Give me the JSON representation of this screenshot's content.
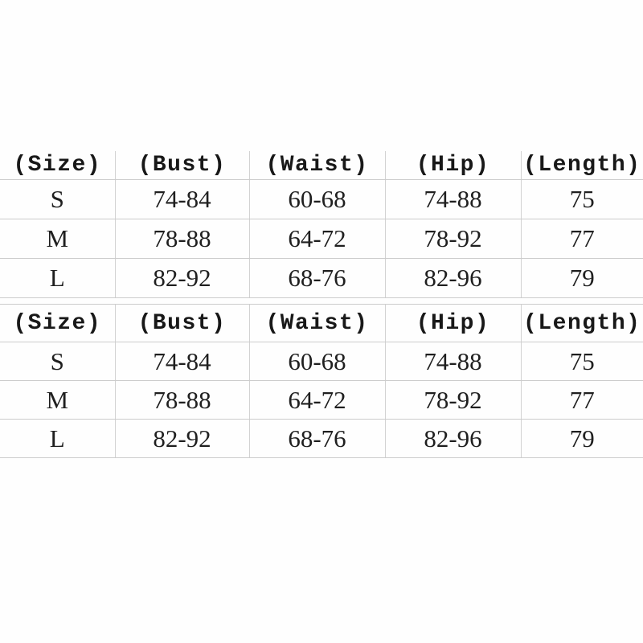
{
  "page": {
    "background_color": "#fefefe",
    "text_color": "#1f1f1f",
    "grid_line_color": "#cccccc"
  },
  "chart_data": [
    {
      "type": "table",
      "name": "size-chart-top",
      "columns": [
        "(Size)",
        "(Bust)",
        "(Waist)",
        "(Hip)",
        "(Length)"
      ],
      "rows": [
        [
          "S",
          "74-84",
          "60-68",
          "74-88",
          "75"
        ],
        [
          "M",
          "78-88",
          "64-72",
          "78-92",
          "77"
        ],
        [
          "L",
          "82-92",
          "68-76",
          "82-96",
          "79"
        ]
      ]
    },
    {
      "type": "table",
      "name": "size-chart-bottom",
      "columns": [
        "(Size)",
        "(Bust)",
        "(Waist)",
        "(Hip)",
        "(Length)"
      ],
      "rows": [
        [
          "S",
          "74-84",
          "60-68",
          "74-88",
          "75"
        ],
        [
          "M",
          "78-88",
          "64-72",
          "78-92",
          "77"
        ],
        [
          "L",
          "82-92",
          "68-76",
          "82-96",
          "79"
        ]
      ]
    }
  ]
}
